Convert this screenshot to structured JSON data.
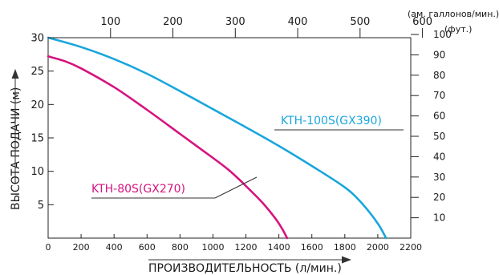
{
  "chart_data": {
    "type": "line",
    "xlabel": "ПРОИЗВОДИТЕЛЬНОСТЬ (л/мин.)",
    "ylabel": "ВЫСОТА ПОДАЧИ (м)",
    "x_ticks": [
      0,
      200,
      400,
      600,
      800,
      1000,
      1200,
      1400,
      1600,
      1800,
      2000,
      2200
    ],
    "xlim": [
      0,
      2200
    ],
    "y_ticks": [
      5,
      10,
      15,
      20,
      25,
      30
    ],
    "ylim": [
      0,
      30
    ],
    "top_axis": {
      "unit": "(ам. галлонов/мин.)",
      "ticks": [
        100,
        200,
        300,
        400,
        500,
        600
      ],
      "factor": 3.785
    },
    "right_axis": {
      "unit": "(фут.)",
      "ticks": [
        10,
        20,
        30,
        40,
        50,
        60,
        70,
        80,
        90,
        100
      ],
      "factor": 0.3048
    },
    "grid": false,
    "series": [
      {
        "name": "KTH-100S(GX390)",
        "color": "#1aa6dd",
        "x": [
          0,
          200,
          400,
          600,
          800,
          1000,
          1200,
          1400,
          1600,
          1800,
          1900,
          2000,
          2050
        ],
        "y": [
          30,
          28.6,
          26.8,
          24.6,
          22.0,
          19.3,
          16.6,
          13.8,
          10.8,
          7.6,
          5.3,
          2.2,
          0
        ]
      },
      {
        "name": "KTH-80S(GX270)",
        "color": "#d6137f",
        "x": [
          0,
          100,
          200,
          400,
          600,
          800,
          1000,
          1100,
          1200,
          1300,
          1380,
          1420,
          1450
        ],
        "y": [
          27.2,
          26.5,
          25.4,
          22.6,
          19.2,
          15.6,
          12.0,
          10.1,
          7.8,
          5.3,
          2.9,
          1.4,
          0
        ]
      }
    ]
  }
}
